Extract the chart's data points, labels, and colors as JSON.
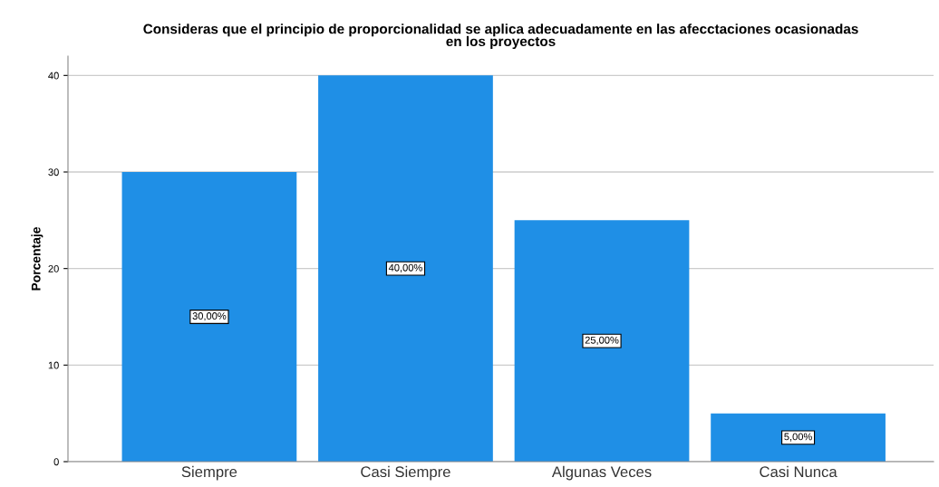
{
  "chart_data": {
    "type": "bar",
    "title": "Consideras que el principio de proporcionalidad se aplica adecuadamente en las afecctaciones ocasionadas\nen los proyectos",
    "ylabel": "Porcentaje",
    "categories": [
      "Siempre",
      "Casi Siempre",
      "Algunas Veces",
      "Casi Nunca"
    ],
    "values": [
      30,
      40,
      25,
      5
    ],
    "value_labels": [
      "30,00%",
      "40,00%",
      "25,00%",
      "5,00%"
    ],
    "color": "#1f8fe6",
    "ylim": [
      0,
      42
    ],
    "yticks": [
      0,
      10,
      20,
      30,
      40
    ],
    "grid": "y",
    "legend": false
  }
}
